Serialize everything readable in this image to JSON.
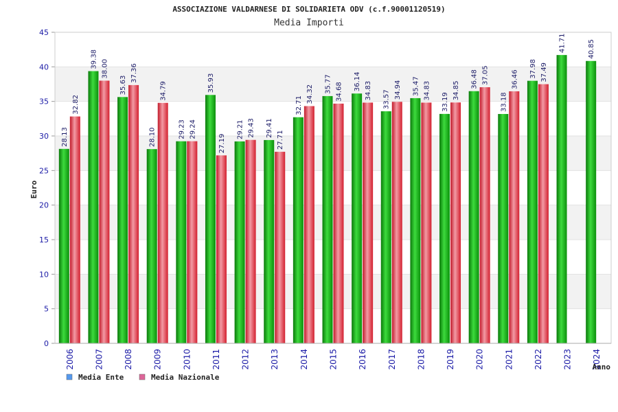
{
  "chart_data": {
    "type": "bar",
    "title": "ASSOCIAZIONE VALDARNESE DI SOLIDARIETA ODV (c.f.90001120519)",
    "subtitle": "Media Importi",
    "xlabel": "Anno",
    "ylabel": "Euro",
    "ylim": [
      0,
      45
    ],
    "y_ticks": [
      "0",
      "5",
      "10",
      "15",
      "20",
      "25",
      "30",
      "35",
      "40",
      "45"
    ],
    "grid": true,
    "legend_position": "bottom-left",
    "categories": [
      "2006",
      "2007",
      "2008",
      "2009",
      "2010",
      "2011",
      "2012",
      "2013",
      "2014",
      "2015",
      "2016",
      "2017",
      "2018",
      "2019",
      "2020",
      "2021",
      "2022",
      "2023",
      "2024"
    ],
    "series": [
      {
        "name": "Media Ente",
        "legend_color": "#5599ee",
        "bar_color": "#11aa11",
        "values": [
          28.13,
          39.38,
          35.63,
          28.1,
          29.23,
          35.93,
          29.21,
          29.41,
          32.71,
          35.77,
          36.14,
          33.57,
          35.47,
          33.19,
          36.48,
          33.18,
          37.98,
          41.71,
          40.85
        ],
        "labels": [
          "28.13",
          "39.38",
          "35.63",
          "28.10",
          "29.23",
          "35.93",
          "29.21",
          "29.41",
          "32.71",
          "35.77",
          "36.14",
          "33.57",
          "35.47",
          "33.19",
          "36.48",
          "33.18",
          "37.98",
          "41.71",
          "40.85"
        ]
      },
      {
        "name": "Media Nazionale",
        "legend_color": "#dd6699",
        "bar_color": "#dd2233",
        "values": [
          32.82,
          38.0,
          37.36,
          34.79,
          29.24,
          27.19,
          29.43,
          27.71,
          34.32,
          34.68,
          34.83,
          34.94,
          34.83,
          34.85,
          37.05,
          36.46,
          37.49,
          null,
          null
        ],
        "labels": [
          "32.82",
          "38.00",
          "37.36",
          "34.79",
          "29.24",
          "27.19",
          "29.43",
          "27.71",
          "34.32",
          "34.68",
          "34.83",
          "34.94",
          "34.83",
          "34.85",
          "37.05",
          "36.46",
          "37.49",
          "",
          ""
        ]
      }
    ]
  }
}
